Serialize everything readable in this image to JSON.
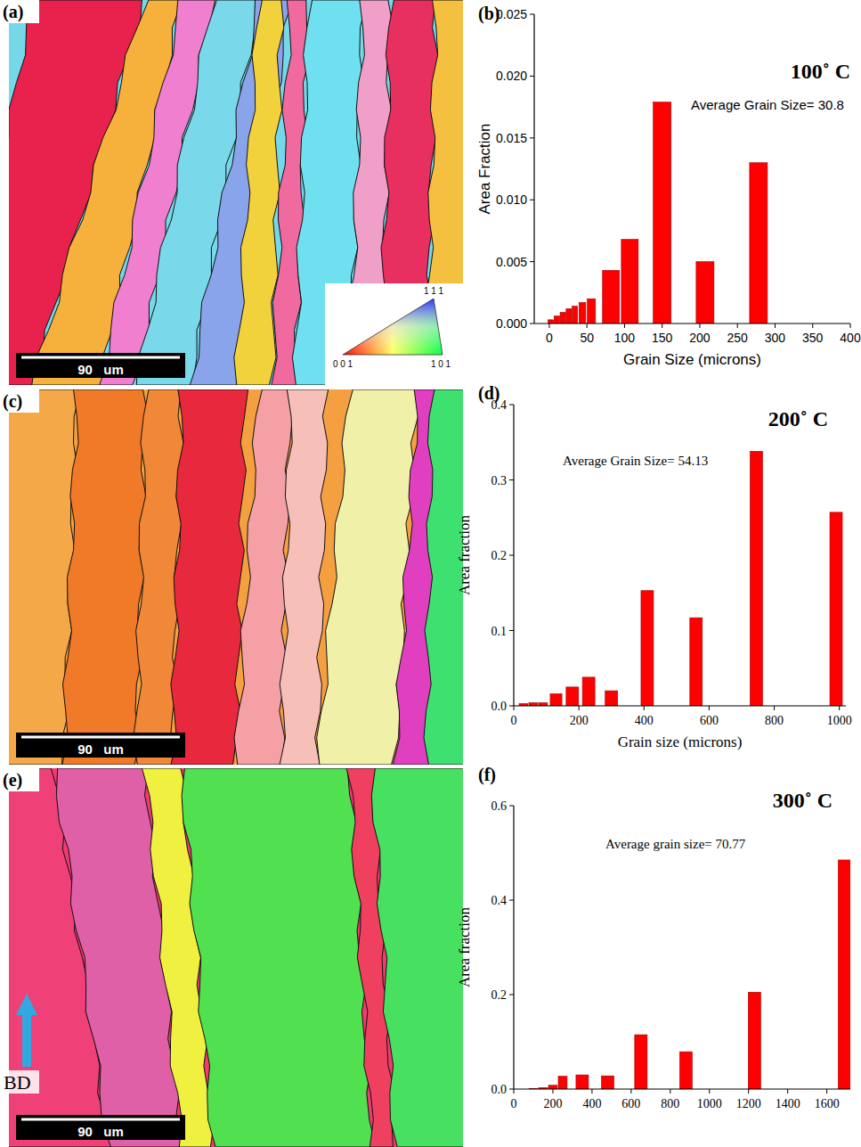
{
  "chart_data": [
    {
      "type": "bar",
      "panel_label": "(b)",
      "title": "100˚ C",
      "annotations": [
        "Average Grain Size= 30.8"
      ],
      "x_label": "Grain Size (microns)",
      "y_label": "Area Fraction",
      "color": "#ff0000",
      "x": [
        2,
        10,
        18,
        26,
        34,
        44,
        56,
        82,
        107,
        150,
        207,
        278
      ],
      "values": [
        0.0003,
        0.0006,
        0.0009,
        0.0012,
        0.0014,
        0.0017,
        0.002,
        0.0043,
        0.0068,
        0.0179,
        0.005,
        0.013
      ],
      "xlim": [
        -20,
        400
      ],
      "xticks": [
        0,
        50,
        100,
        150,
        200,
        250,
        300,
        350,
        400
      ],
      "ylim": [
        0,
        0.025
      ],
      "yticks": [
        {
          "value": 0,
          "label": "0.000"
        },
        {
          "value": 0.005,
          "label": "0.005"
        },
        {
          "value": 0.01,
          "label": "0.010"
        },
        {
          "value": 0.015,
          "label": "0.015"
        },
        {
          "value": 0.02,
          "label": "0.020"
        },
        {
          "value": 0.025,
          "label": "0.025"
        }
      ],
      "grid": false
    },
    {
      "type": "bar",
      "panel_label": "(d)",
      "title": "200˚ C",
      "annotations": [
        "Average Grain Size= 54.13"
      ],
      "x_label": "Grain size (microns)",
      "y_label": "Area fraction",
      "color": "#ff0000",
      "x": [
        30,
        60,
        90,
        130,
        180,
        230,
        300,
        410,
        560,
        745,
        990
      ],
      "values": [
        0.003,
        0.004,
        0.004,
        0.016,
        0.025,
        0.038,
        0.02,
        0.153,
        0.117,
        0.338,
        0.257
      ],
      "xlim": [
        0,
        1020
      ],
      "xticks": [
        0,
        200,
        400,
        600,
        800,
        1000
      ],
      "ylim": [
        0,
        0.4
      ],
      "yticks": [
        {
          "value": 0,
          "label": "0.0"
        },
        {
          "value": 0.1,
          "label": "0.1"
        },
        {
          "value": 0.2,
          "label": "0.2"
        },
        {
          "value": 0.3,
          "label": "0.3"
        },
        {
          "value": 0.4,
          "label": "0.4"
        }
      ],
      "grid": false
    },
    {
      "type": "bar",
      "panel_label": "(f)",
      "title": "300˚ C",
      "annotations": [
        "Average grain size= 70.77"
      ],
      "y_label": "Area fraction",
      "color": "#ff0000",
      "x": [
        100,
        150,
        200,
        250,
        350,
        480,
        650,
        880,
        1230,
        1690
      ],
      "values": [
        0.001,
        0.003,
        0.008,
        0.027,
        0.03,
        0.028,
        0.115,
        0.079,
        0.205,
        0.485
      ],
      "xlim": [
        0,
        1720
      ],
      "xticks": [
        0,
        200,
        400,
        600,
        800,
        1000,
        1200,
        1400,
        1600
      ],
      "ylim": [
        0,
        0.6
      ],
      "yticks": [
        {
          "value": 0,
          "label": "0.0"
        },
        {
          "value": 0.2,
          "label": "0.2"
        },
        {
          "value": 0.4,
          "label": "0.4"
        },
        {
          "value": 0.6,
          "label": "0.6"
        }
      ],
      "grid": false
    }
  ],
  "maps": [
    {
      "panel_label": "(a)",
      "scale_bar": "90   um"
    },
    {
      "panel_label": "(c)",
      "scale_bar": "90   um"
    },
    {
      "panel_label": "(e)",
      "scale_bar": "90   um",
      "direction_label": "BD"
    }
  ],
  "ipf_key": {
    "top": "1 1 1",
    "left": "0 0 1",
    "right": "1 0 1"
  }
}
